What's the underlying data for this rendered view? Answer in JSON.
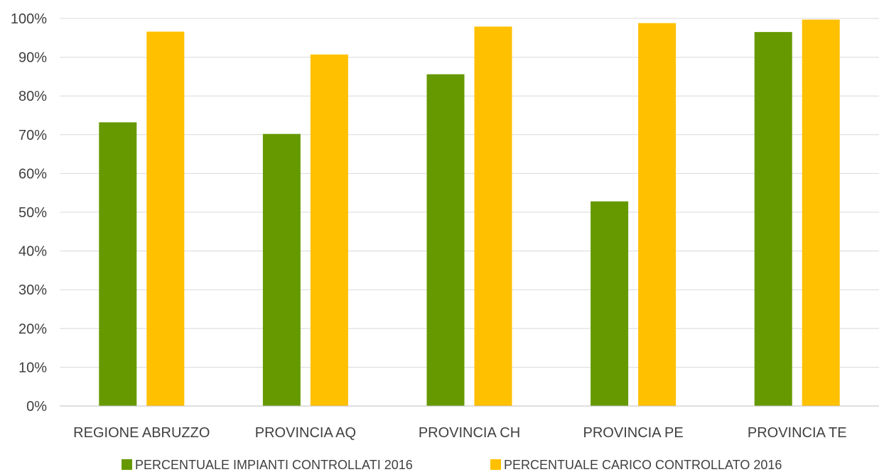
{
  "chart_data": {
    "type": "bar",
    "categories": [
      "REGIONE ABRUZZO",
      "PROVINCIA AQ",
      "PROVINCIA CH",
      "PROVINCIA PE",
      "PROVINCIA TE"
    ],
    "series": [
      {
        "name": "PERCENTUALE IMPIANTI CONTROLLATI 2016",
        "color": "#669900",
        "values": [
          73.2,
          70.2,
          85.6,
          52.8,
          96.5
        ]
      },
      {
        "name": "PERCENTUALE CARICO CONTROLLATO 2016",
        "color": "#FFC000",
        "values": [
          96.6,
          90.7,
          97.9,
          98.8,
          99.7
        ]
      }
    ],
    "ylim": [
      0,
      100
    ],
    "yticks": [
      "0%",
      "10%",
      "20%",
      "30%",
      "40%",
      "50%",
      "60%",
      "70%",
      "80%",
      "90%",
      "100%"
    ],
    "grid": true,
    "legend_position": "bottom",
    "title": "",
    "xlabel": "",
    "ylabel": ""
  }
}
